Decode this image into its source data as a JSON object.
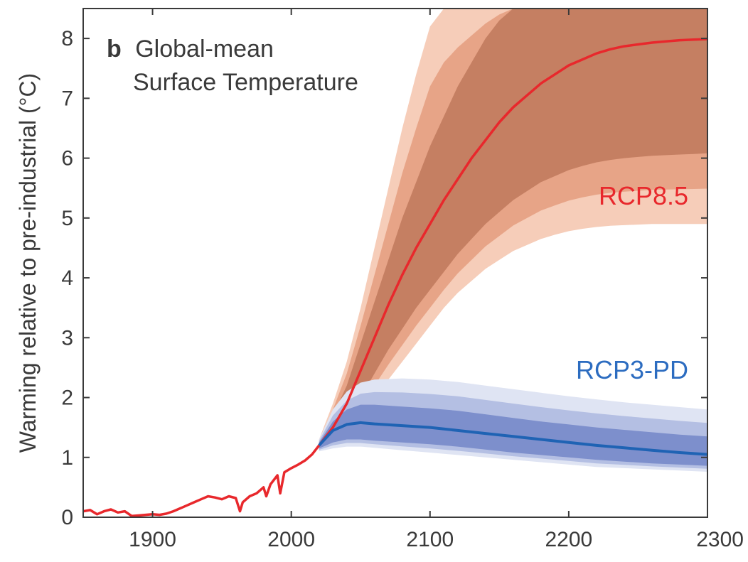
{
  "chart_data": {
    "type": "line",
    "panel_letter": "b",
    "title_lines": [
      "Global-mean",
      "Surface Temperature"
    ],
    "ylabel": "Warming relative to pre-industrial (°C)",
    "xlabel": "",
    "xlim": [
      1850,
      2300
    ],
    "ylim": [
      0,
      8.5
    ],
    "xticks": [
      1900,
      2000,
      2100,
      2200,
      2300
    ],
    "yticks": [
      0,
      1,
      2,
      3,
      4,
      5,
      6,
      7,
      8
    ],
    "grid": false,
    "colors": {
      "rcp85": "#e8282c",
      "rcp85_band_outer": "#f6cdb9",
      "rcp85_band_mid": "#e7a487",
      "rcp85_band_inner": "#c57f62",
      "rcp3pd": "#1f63b4",
      "rcp3pd_band_outer": "#dfe4f3",
      "rcp3pd_band_mid": "#b4bfe3",
      "rcp3pd_band_inner": "#7d8fcc",
      "axis": "#3a3a3a"
    },
    "historical": {
      "x": [
        1850,
        1855,
        1860,
        1865,
        1870,
        1875,
        1880,
        1885,
        1890,
        1895,
        1900,
        1905,
        1910,
        1915,
        1920,
        1925,
        1930,
        1935,
        1940,
        1945,
        1950,
        1955,
        1960,
        1963,
        1965,
        1970,
        1975,
        1980,
        1982,
        1985,
        1990,
        1992,
        1995,
        2000,
        2005,
        2010,
        2015,
        2020
      ],
      "y": [
        0.1,
        0.12,
        0.05,
        0.1,
        0.13,
        0.08,
        0.1,
        0.02,
        0.03,
        0.04,
        0.05,
        0.04,
        0.06,
        0.1,
        0.15,
        0.2,
        0.25,
        0.3,
        0.35,
        0.33,
        0.3,
        0.35,
        0.32,
        0.1,
        0.25,
        0.35,
        0.4,
        0.5,
        0.35,
        0.55,
        0.7,
        0.4,
        0.75,
        0.82,
        0.88,
        0.95,
        1.05,
        1.2
      ]
    },
    "series": [
      {
        "name": "RCP8.5",
        "x": [
          2020,
          2030,
          2040,
          2050,
          2060,
          2070,
          2080,
          2090,
          2100,
          2110,
          2120,
          2130,
          2140,
          2150,
          2160,
          2170,
          2180,
          2190,
          2200,
          2210,
          2220,
          2230,
          2240,
          2250,
          2260,
          2270,
          2280,
          2290,
          2300
        ],
        "y": [
          1.2,
          1.5,
          1.9,
          2.45,
          3.0,
          3.55,
          4.05,
          4.5,
          4.9,
          5.3,
          5.65,
          6.0,
          6.3,
          6.6,
          6.85,
          7.05,
          7.25,
          7.4,
          7.55,
          7.65,
          7.75,
          7.82,
          7.87,
          7.9,
          7.93,
          7.95,
          7.97,
          7.98,
          7.99
        ],
        "band_inner_low": [
          1.15,
          1.35,
          1.65,
          2.0,
          2.4,
          2.8,
          3.15,
          3.5,
          3.8,
          4.1,
          4.4,
          4.65,
          4.9,
          5.1,
          5.3,
          5.45,
          5.6,
          5.7,
          5.8,
          5.87,
          5.93,
          5.97,
          6.0,
          6.02,
          6.04,
          6.05,
          6.06,
          6.07,
          6.08
        ],
        "band_inner_high": [
          1.25,
          1.7,
          2.2,
          2.9,
          3.6,
          4.3,
          5.0,
          5.6,
          6.2,
          6.7,
          7.2,
          7.6,
          8.0,
          8.3,
          8.5,
          8.5,
          8.5,
          8.5,
          8.5,
          8.5,
          8.5,
          8.5,
          8.5,
          8.5,
          8.5,
          8.5,
          8.5,
          8.5,
          8.5
        ],
        "band_outer_low": [
          1.1,
          1.25,
          1.45,
          1.7,
          2.0,
          2.3,
          2.6,
          2.9,
          3.2,
          3.5,
          3.75,
          3.95,
          4.15,
          4.3,
          4.45,
          4.55,
          4.65,
          4.72,
          4.78,
          4.82,
          4.85,
          4.87,
          4.88,
          4.89,
          4.9,
          4.9,
          4.9,
          4.9,
          4.9
        ],
        "band_outer_high": [
          1.3,
          1.9,
          2.6,
          3.5,
          4.5,
          5.5,
          6.5,
          7.4,
          8.2,
          8.5,
          8.5,
          8.5,
          8.5,
          8.5,
          8.5,
          8.5,
          8.5,
          8.5,
          8.5,
          8.5,
          8.5,
          8.5,
          8.5,
          8.5,
          8.5,
          8.5,
          8.5,
          8.5,
          8.5
        ]
      },
      {
        "name": "RCP3-PD",
        "x": [
          2020,
          2030,
          2040,
          2050,
          2060,
          2080,
          2100,
          2120,
          2140,
          2160,
          2180,
          2200,
          2220,
          2240,
          2260,
          2280,
          2300
        ],
        "y": [
          1.2,
          1.45,
          1.55,
          1.58,
          1.56,
          1.53,
          1.5,
          1.45,
          1.4,
          1.35,
          1.3,
          1.25,
          1.2,
          1.16,
          1.12,
          1.08,
          1.05
        ],
        "band_inner_low": [
          1.15,
          1.25,
          1.3,
          1.3,
          1.28,
          1.25,
          1.22,
          1.18,
          1.13,
          1.08,
          1.04,
          1.0,
          0.96,
          0.93,
          0.9,
          0.88,
          0.86
        ],
        "band_inner_high": [
          1.25,
          1.6,
          1.8,
          1.88,
          1.88,
          1.85,
          1.82,
          1.78,
          1.72,
          1.66,
          1.6,
          1.55,
          1.5,
          1.46,
          1.42,
          1.38,
          1.35
        ],
        "band_outer_low": [
          1.1,
          1.15,
          1.18,
          1.18,
          1.16,
          1.12,
          1.08,
          1.04,
          1.0,
          0.96,
          0.92,
          0.88,
          0.84,
          0.82,
          0.8,
          0.78,
          0.76
        ],
        "band_outer_high": [
          1.3,
          1.8,
          2.1,
          2.25,
          2.3,
          2.32,
          2.3,
          2.26,
          2.2,
          2.14,
          2.08,
          2.02,
          1.97,
          1.92,
          1.88,
          1.84,
          1.8
        ]
      }
    ],
    "annotations": [
      {
        "text": "RCP8.5",
        "series": "RCP8.5"
      },
      {
        "text": "RCP3-PD",
        "series": "RCP3-PD"
      }
    ]
  }
}
